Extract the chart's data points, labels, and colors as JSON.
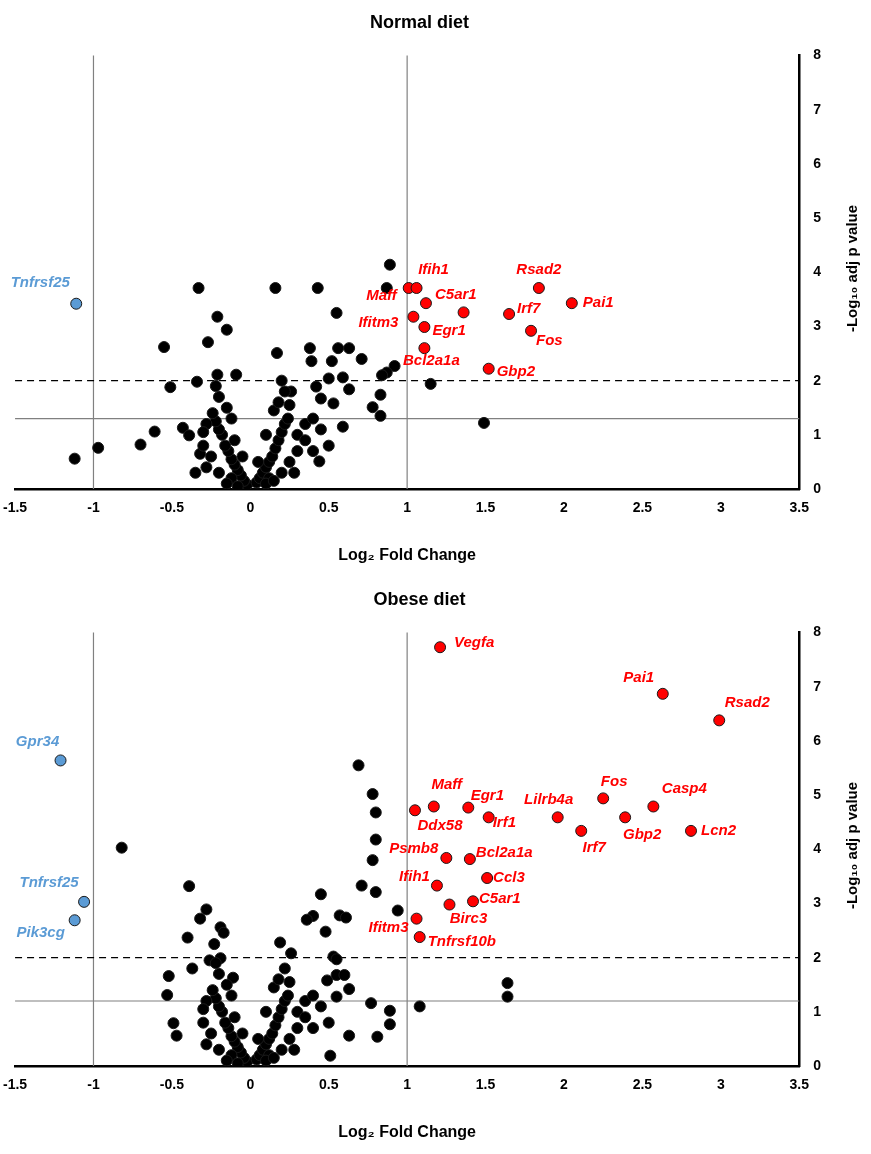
{
  "chart_data": [
    {
      "type": "scatter",
      "title": "Normal diet",
      "xlabel": "Log₂ Fold Change",
      "ylabel": "-Log₁₀ adj p value",
      "xlim": [
        -1.5,
        3.5
      ],
      "xticks": [
        -1.5,
        -1,
        -0.5,
        0,
        0.5,
        1,
        1.5,
        2,
        2.5,
        3,
        3.5
      ],
      "ylim": [
        0,
        8
      ],
      "yticks": [
        0,
        1,
        2,
        3,
        4,
        5,
        6,
        7,
        8
      ],
      "grid": false,
      "legend": false,
      "marker": "circle",
      "ref_lines": [
        {
          "axis": "x",
          "value": -1,
          "color": "#808080",
          "line_style": "solid"
        },
        {
          "axis": "x",
          "value": 1,
          "color": "#808080",
          "line_style": "solid"
        },
        {
          "axis": "y",
          "value": 1.3,
          "color": "#808080",
          "line_style": "solid"
        },
        {
          "axis": "y",
          "value": 2,
          "color": "#000000",
          "line_style": "dashed"
        }
      ],
      "series": [
        {
          "color": "#000000",
          "x": [
            0.89,
            0.87,
            -0.33,
            0.16,
            0.43,
            -0.21,
            -0.15,
            -0.27,
            -0.55,
            0.55,
            0.17,
            0.38,
            0.39,
            0.56,
            0.63,
            0.52,
            0.71,
            0.92,
            0.87,
            0.84,
            -0.51,
            1.15,
            1.49,
            0.83,
            0.78,
            0.83,
            -1.12,
            -0.97,
            -0.7,
            -0.61,
            -0.43,
            -0.39,
            -0.35,
            -0.32,
            -0.34,
            -0.21,
            -0.09,
            0.2,
            0.5,
            0.59,
            0.63,
            0.42,
            0.26,
            0.45,
            0.53,
            0.59,
            0.44,
            -0.02,
            0.04,
            -0.04,
            0.06,
            -0.06,
            0.08,
            -0.08,
            0.1,
            -0.1,
            0.12,
            -0.12,
            0.14,
            -0.14,
            0.16,
            -0.16,
            0.18,
            -0.18,
            0.2,
            -0.2,
            0.22,
            -0.22,
            0.24,
            -0.24,
            0.15,
            -0.15,
            0.18,
            -0.12,
            0.1,
            -0.1,
            0.05,
            -0.05,
            0.12,
            -0.12,
            0.2,
            -0.2,
            0.25,
            -0.25,
            0.3,
            -0.3,
            0.3,
            -0.28,
            0.35,
            0.35,
            0.4,
            0.45,
            0.5,
            0.28,
            -0.28,
            -0.3,
            0.22,
            -0.2,
            -0.22,
            0.25,
            0.4,
            0.1,
            -0.08,
            0.15,
            -0.15
          ],
          "values": [
            4.14,
            3.71,
            3.71,
            3.71,
            3.71,
            3.18,
            2.94,
            2.71,
            2.62,
            3.25,
            2.51,
            2.6,
            2.36,
            2.6,
            2.6,
            2.36,
            2.4,
            2.27,
            2.15,
            2.1,
            1.88,
            1.94,
            1.22,
            1.74,
            1.51,
            1.35,
            0.56,
            0.76,
            0.82,
            1.06,
            1.13,
            0.99,
            0.3,
            0.65,
            1.98,
            2.11,
            2.11,
            2.0,
            2.04,
            2.06,
            1.84,
            1.89,
            1.8,
            1.67,
            1.58,
            1.15,
            0.51,
            0.08,
            0.12,
            0.15,
            0.2,
            0.25,
            0.3,
            0.35,
            0.4,
            0.45,
            0.5,
            0.55,
            0.6,
            0.7,
            0.75,
            0.8,
            0.9,
            1.0,
            1.05,
            1.1,
            1.2,
            1.25,
            1.3,
            1.4,
            1.45,
            1.5,
            1.6,
            1.3,
            1.0,
            0.9,
            0.5,
            0.6,
            0.2,
            0.2,
            0.3,
            0.3,
            0.5,
            0.6,
            0.7,
            0.8,
            1.0,
            1.2,
            0.9,
            1.2,
            1.3,
            1.1,
            0.8,
            0.3,
            0.4,
            1.05,
            1.8,
            1.7,
            1.9,
            1.55,
            0.7,
            0.1,
            0.05,
            0.15,
            0.1
          ]
        },
        {
          "color": "#ff0000",
          "x": [
            1.01,
            1.06,
            1.12,
            1.04,
            1.11,
            1.11,
            1.65,
            1.79,
            1.84,
            2.05,
            1.52,
            1.36
          ],
          "values": [
            3.71,
            3.71,
            3.43,
            3.18,
            2.99,
            2.6,
            3.23,
            2.92,
            3.71,
            3.43,
            2.22,
            3.26
          ]
        },
        {
          "color": "#5b9bd5",
          "x": [
            -1.11
          ],
          "values": [
            3.42
          ]
        }
      ],
      "annotations": [
        {
          "text": "Maff",
          "x": 1.01,
          "y": 3.71
        },
        {
          "text": "Ifih1",
          "x": 1.06,
          "y": 3.71
        },
        {
          "text": "C5ar1",
          "x": 1.12,
          "y": 3.43
        },
        {
          "text": "Ifitm3",
          "x": 1.04,
          "y": 3.18
        },
        {
          "text": "Egr1",
          "x": 1.11,
          "y": 2.99
        },
        {
          "text": "Bcl2a1a",
          "x": 1.11,
          "y": 2.6
        },
        {
          "text": "Irf7",
          "x": 1.65,
          "y": 3.23
        },
        {
          "text": "Fos",
          "x": 1.79,
          "y": 2.92
        },
        {
          "text": "Rsad2",
          "x": 1.84,
          "y": 3.71
        },
        {
          "text": "Pai1",
          "x": 2.05,
          "y": 3.43
        },
        {
          "text": "Gbp2",
          "x": 1.52,
          "y": 2.22
        },
        {
          "text": "Tnfrsf25",
          "x": -1.11,
          "y": 3.42
        }
      ]
    },
    {
      "type": "scatter",
      "title": "Obese diet",
      "xlabel": "Log₂ Fold Change",
      "ylabel": "-Log₁₀ adj p value",
      "xlim": [
        -1.5,
        3.5
      ],
      "xticks": [
        -1.5,
        -1,
        -0.5,
        0,
        0.5,
        1,
        1.5,
        2,
        2.5,
        3,
        3.5
      ],
      "ylim": [
        0,
        8
      ],
      "yticks": [
        0,
        1,
        2,
        3,
        4,
        5,
        6,
        7,
        8
      ],
      "grid": false,
      "legend": false,
      "marker": "circle",
      "ref_lines": [
        {
          "axis": "x",
          "value": -1,
          "color": "#808080",
          "line_style": "solid"
        },
        {
          "axis": "x",
          "value": 1,
          "color": "#808080",
          "line_style": "solid"
        },
        {
          "axis": "y",
          "value": 1.2,
          "color": "#808080",
          "line_style": "solid"
        },
        {
          "axis": "y",
          "value": 2,
          "color": "#000000",
          "line_style": "dashed"
        }
      ],
      "series": [
        {
          "color": "#000000",
          "x": [
            0.69,
            0.78,
            0.8,
            0.8,
            0.78,
            0.71,
            0.8,
            0.94,
            -0.82,
            -0.39,
            -0.28,
            -0.32,
            -0.19,
            -0.17,
            -0.4,
            -0.23,
            -0.26,
            -0.19,
            -0.37,
            -0.52,
            -0.53,
            -0.11,
            0.45,
            0.4,
            0.36,
            0.48,
            0.57,
            0.61,
            0.19,
            0.26,
            0.53,
            0.55,
            0.55,
            0.6,
            0.49,
            0.63,
            0.55,
            0.77,
            0.89,
            0.89,
            0.81,
            0.63,
            0.51,
            1.64,
            1.64,
            1.08,
            -0.49,
            -0.47,
            -0.02,
            0.04,
            -0.04,
            0.06,
            -0.06,
            0.08,
            -0.08,
            0.1,
            -0.1,
            0.12,
            -0.12,
            0.14,
            -0.14,
            0.16,
            -0.16,
            0.18,
            -0.18,
            0.2,
            -0.2,
            0.22,
            -0.22,
            0.24,
            -0.24,
            0.15,
            -0.15,
            0.18,
            -0.12,
            0.1,
            -0.1,
            0.05,
            -0.05,
            0.12,
            -0.12,
            0.2,
            -0.2,
            0.25,
            -0.25,
            0.3,
            -0.3,
            0.3,
            -0.28,
            0.35,
            0.35,
            0.4,
            0.45,
            0.5,
            0.28,
            -0.28,
            -0.3,
            0.22,
            -0.2,
            -0.22,
            0.25,
            0.4,
            0.1,
            -0.08,
            0.15,
            -0.15
          ],
          "values": [
            5.55,
            5.02,
            4.68,
            4.18,
            3.8,
            3.33,
            3.21,
            2.87,
            4.03,
            3.32,
            2.89,
            2.72,
            2.56,
            2.46,
            2.37,
            2.25,
            1.95,
            1.99,
            1.8,
            1.66,
            1.31,
            1.63,
            3.17,
            2.77,
            2.7,
            2.48,
            2.78,
            2.74,
            2.28,
            2.08,
            2.02,
            1.97,
            1.68,
            1.68,
            1.58,
            1.42,
            1.28,
            1.16,
            1.02,
            0.77,
            0.54,
            0.56,
            0.19,
            1.53,
            1.28,
            1.1,
            0.79,
            0.56,
            0.08,
            0.12,
            0.15,
            0.2,
            0.25,
            0.3,
            0.35,
            0.4,
            0.45,
            0.5,
            0.55,
            0.6,
            0.7,
            0.75,
            0.8,
            0.9,
            1.0,
            1.05,
            1.1,
            1.2,
            1.25,
            1.3,
            1.4,
            1.45,
            1.5,
            1.6,
            1.3,
            1.0,
            0.9,
            0.5,
            0.6,
            0.2,
            0.2,
            0.3,
            0.3,
            0.5,
            0.6,
            0.7,
            0.8,
            1.0,
            1.2,
            0.9,
            1.2,
            1.3,
            1.1,
            0.8,
            0.3,
            0.4,
            1.05,
            1.8,
            1.7,
            1.9,
            1.55,
            0.7,
            0.1,
            0.05,
            0.15,
            0.1
          ]
        },
        {
          "color": "#ff0000",
          "x": [
            1.21,
            2.63,
            2.99,
            1.17,
            1.05,
            1.39,
            1.52,
            1.96,
            2.25,
            2.57,
            2.39,
            2.11,
            2.81,
            1.25,
            1.4,
            1.19,
            1.51,
            1.42,
            1.27,
            1.06,
            1.08
          ],
          "values": [
            7.73,
            6.87,
            6.38,
            4.79,
            4.72,
            4.77,
            4.59,
            4.59,
            4.94,
            4.79,
            4.59,
            4.34,
            4.34,
            3.84,
            3.82,
            3.33,
            3.47,
            3.04,
            2.98,
            2.72,
            2.38
          ]
        },
        {
          "color": "#5b9bd5",
          "x": [
            -1.21,
            -1.06,
            -1.12
          ],
          "values": [
            5.64,
            3.03,
            2.69
          ]
        }
      ],
      "annotations": [
        {
          "text": "Vegfa",
          "x": 1.21,
          "y": 7.73
        },
        {
          "text": "Pai1",
          "x": 2.63,
          "y": 6.87
        },
        {
          "text": "Rsad2",
          "x": 2.99,
          "y": 6.38
        },
        {
          "text": "Maff",
          "x": 1.17,
          "y": 4.79
        },
        {
          "text": "Ddx58",
          "x": 1.05,
          "y": 4.72
        },
        {
          "text": "Egr1",
          "x": 1.39,
          "y": 4.77
        },
        {
          "text": "Irf1",
          "x": 1.52,
          "y": 4.59
        },
        {
          "text": "Lilrb4a",
          "x": 1.96,
          "y": 4.59
        },
        {
          "text": "Fos",
          "x": 2.25,
          "y": 4.94
        },
        {
          "text": "Casp4",
          "x": 2.57,
          "y": 4.79
        },
        {
          "text": "Gbp2",
          "x": 2.39,
          "y": 4.59
        },
        {
          "text": "Irf7",
          "x": 2.11,
          "y": 4.34
        },
        {
          "text": "Lcn2",
          "x": 2.81,
          "y": 4.34
        },
        {
          "text": "Psmb8",
          "x": 1.25,
          "y": 3.84
        },
        {
          "text": "Bcl2a1a",
          "x": 1.4,
          "y": 3.82
        },
        {
          "text": "Ifih1",
          "x": 1.19,
          "y": 3.33
        },
        {
          "text": "Ccl3",
          "x": 1.51,
          "y": 3.47
        },
        {
          "text": "C5ar1",
          "x": 1.42,
          "y": 3.04
        },
        {
          "text": "Birc3",
          "x": 1.27,
          "y": 2.98
        },
        {
          "text": "Ifitm3",
          "x": 1.06,
          "y": 2.72
        },
        {
          "text": "Tnfrsf10b",
          "x": 1.08,
          "y": 2.38
        },
        {
          "text": "Gpr34",
          "x": -1.21,
          "y": 5.64
        },
        {
          "text": "Tnfrsf25",
          "x": -1.06,
          "y": 3.03
        },
        {
          "text": "Pik3cg",
          "x": -1.12,
          "y": 2.69
        }
      ]
    }
  ]
}
